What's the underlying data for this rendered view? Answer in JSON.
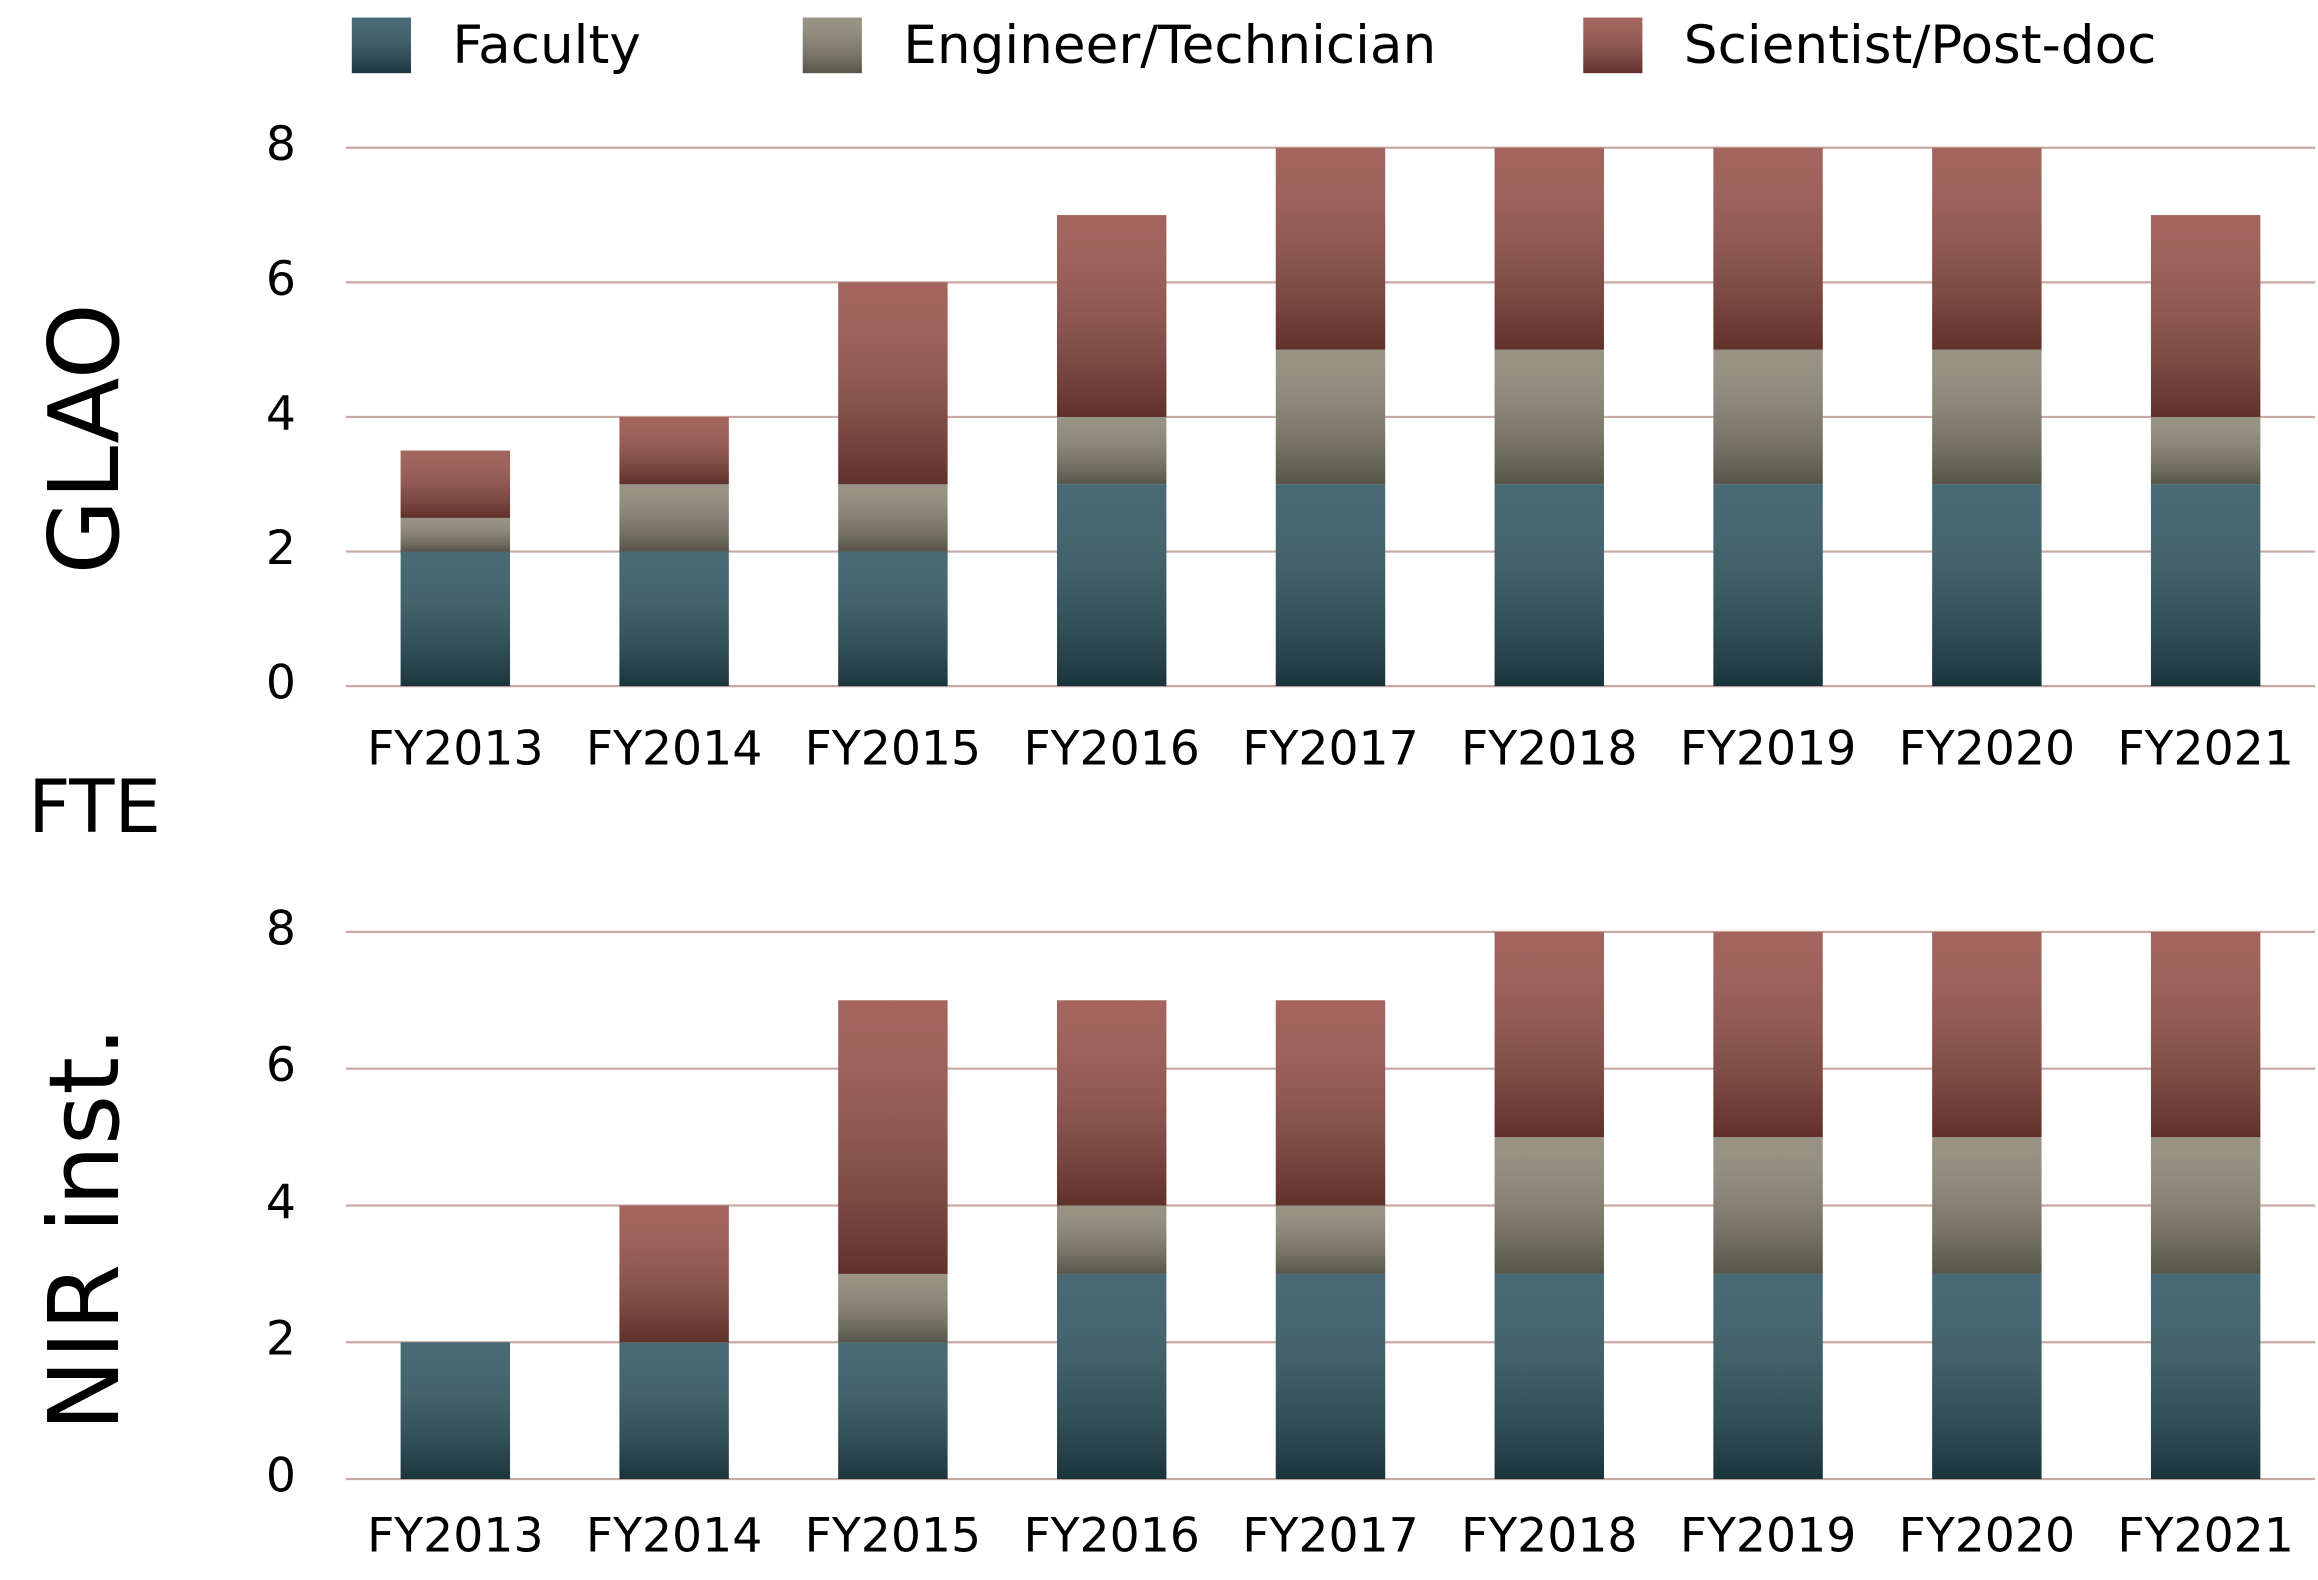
{
  "y_label": "FTE",
  "chart_data": [
    {
      "type": "bar",
      "stacked": true,
      "title": "GLAO",
      "categories": [
        "FY2013",
        "FY2014",
        "FY2015",
        "FY2016",
        "FY2017",
        "FY2018",
        "FY2019",
        "FY2020",
        "FY2021"
      ],
      "series": [
        {
          "name": "Faculty",
          "color": "#28505b",
          "values": [
            2,
            2,
            2,
            3,
            3,
            3,
            3,
            3,
            3
          ]
        },
        {
          "name": "Engineer/Technician",
          "color": "#868170",
          "values": [
            0.5,
            1,
            1,
            1,
            2,
            2,
            2,
            2,
            1
          ]
        },
        {
          "name": "Scientist/Post-doc",
          "color": "#934a42",
          "values": [
            1,
            1,
            3,
            3,
            3,
            3,
            3,
            3,
            3
          ]
        }
      ],
      "ylim": [
        0,
        8
      ],
      "yticks": [
        0,
        2,
        4,
        6,
        8
      ],
      "grid": true
    },
    {
      "type": "bar",
      "stacked": true,
      "title": "NIR inst.",
      "categories": [
        "FY2013",
        "FY2014",
        "FY2015",
        "FY2016",
        "FY2017",
        "FY2018",
        "FY2019",
        "FY2020",
        "FY2021"
      ],
      "series": [
        {
          "color": "#28505b",
          "values": [
            2,
            2,
            2,
            3,
            3,
            3,
            3,
            3,
            3
          ]
        },
        {
          "color": "#868170",
          "values": [
            0,
            0,
            1,
            1,
            1,
            2,
            2,
            2,
            2
          ]
        },
        {
          "color": "#934a42",
          "values": [
            0,
            2,
            4,
            3,
            3,
            3,
            3,
            3,
            3
          ]
        }
      ],
      "ylim": [
        0,
        8
      ],
      "yticks": [
        0,
        2,
        4,
        6,
        8
      ],
      "grid": true
    }
  ]
}
